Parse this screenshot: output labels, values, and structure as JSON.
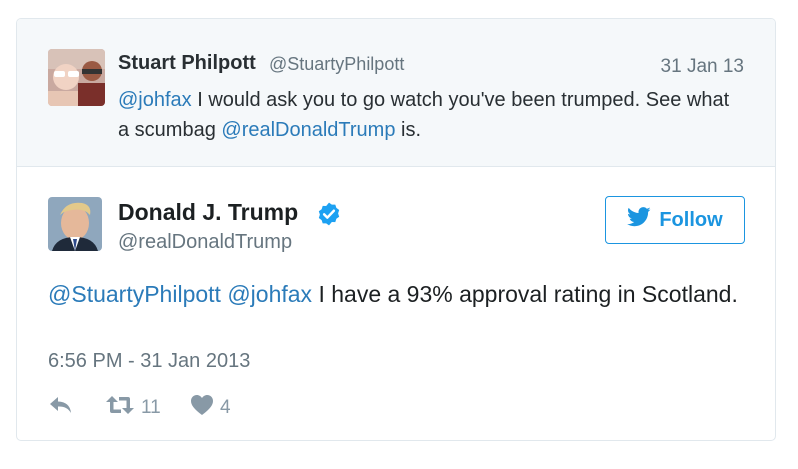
{
  "reply_context": {
    "name": "Stuart Philpott",
    "handle": "@StuartyPhilpott",
    "date": "31 Jan 13",
    "text": [
      {
        "type": "mention",
        "text": "@johfax"
      },
      {
        "type": "text",
        "text": " I would ask you to go watch you've been trumped. See what a scumbag "
      },
      {
        "type": "mention",
        "text": "@realDonaldTrump"
      },
      {
        "type": "text",
        "text": " is."
      }
    ]
  },
  "tweet": {
    "name": "Donald J. Trump",
    "handle": "@realDonaldTrump",
    "follow_label": "Follow",
    "text": [
      {
        "type": "mention",
        "text": "@StuartyPhilpott"
      },
      {
        "type": "text",
        "text": " "
      },
      {
        "type": "mention",
        "text": "@johfax"
      },
      {
        "type": "text",
        "text": " I have a 93% approval rating in Scotland."
      }
    ],
    "timestamp": "6:56 PM - 31 Jan 2013",
    "retweet_count": "11",
    "like_count": "4"
  },
  "icons": {
    "reply": "reply-icon",
    "retweet": "retweet-icon",
    "like": "heart-icon",
    "verified": "verified-badge-icon",
    "twitter": "twitter-bird-icon"
  },
  "colors": {
    "link": "#2b7bb9",
    "follow": "#1b95e0",
    "muted": "#66757f",
    "context_bg": "#f5f8fa"
  }
}
